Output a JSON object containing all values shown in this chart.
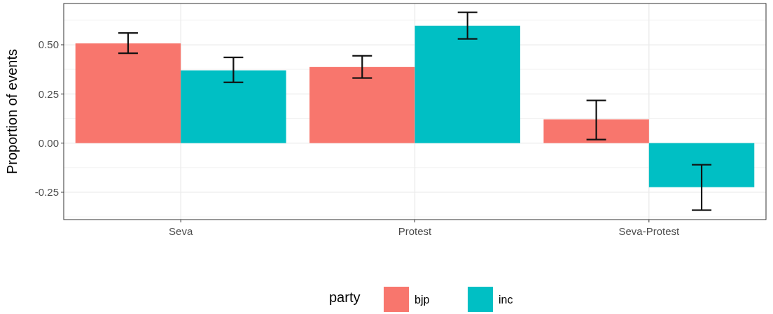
{
  "chart_data": {
    "type": "bar",
    "ylabel": "Proportion of events",
    "legend_title": "party",
    "categories": [
      "Seva",
      "Protest",
      "Seva-Protest"
    ],
    "series": [
      {
        "name": "bjp",
        "color": "#f8766d",
        "values": [
          0.507,
          0.387,
          0.121
        ],
        "errors": [
          [
            0.457,
            0.56
          ],
          [
            0.331,
            0.444
          ],
          [
            0.018,
            0.217
          ]
        ]
      },
      {
        "name": "inc",
        "color": "#00bfc4",
        "values": [
          0.37,
          0.597,
          -0.224
        ],
        "errors": [
          [
            0.309,
            0.436
          ],
          [
            0.53,
            0.665
          ],
          [
            -0.341,
            -0.11
          ]
        ]
      }
    ],
    "ylim": [
      -0.389,
      0.71
    ],
    "yticks": [
      {
        "value": -0.25,
        "label": "-0.25"
      },
      {
        "value": 0,
        "label": "0.00"
      },
      {
        "value": 0.25,
        "label": "0.25"
      },
      {
        "value": 0.5,
        "label": "0.50"
      }
    ],
    "grid": true,
    "legend": "bottom"
  }
}
